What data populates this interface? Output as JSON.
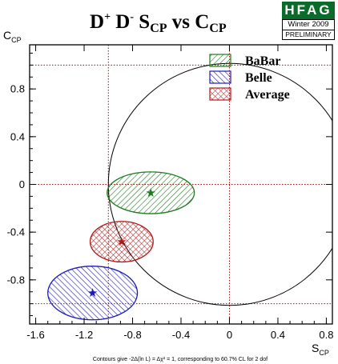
{
  "title": {
    "main": "D",
    "sup1": "+",
    "mid": " D",
    "sup2": "-",
    "sub_prefix": " S",
    "sub1": "CP",
    "vs": " vs C",
    "sub2": "CP"
  },
  "badge": {
    "logo": "HFAG",
    "season": "Winter 2009",
    "status": "PRELIMINARY"
  },
  "axes": {
    "x_label_main": "S",
    "x_label_sub": "CP",
    "y_label_main": "C",
    "y_label_sub": "CP"
  },
  "footnote": "Contours give -2Δ(ln L) = Δχ² = 1, corresponding to 60.7% CL for 2 dof",
  "chart_data": {
    "type": "scatter",
    "xlim": [
      -1.65,
      0.85
    ],
    "ylim": [
      -1.17,
      1.17
    ],
    "x_ticks": [
      {
        "value": -1.6,
        "label": "-1.6"
      },
      {
        "value": -1.2,
        "label": "-1.2"
      },
      {
        "value": -0.8,
        "label": "-0.8"
      },
      {
        "value": -0.4,
        "label": "-0.4"
      },
      {
        "value": 0,
        "label": "0"
      },
      {
        "value": 0.4,
        "label": "0.4"
      },
      {
        "value": 0.8,
        "label": "0.8"
      }
    ],
    "y_ticks": [
      {
        "value": -0.8,
        "label": "-0.8"
      },
      {
        "value": -0.4,
        "label": "-0.4"
      },
      {
        "value": 0,
        "label": "0"
      },
      {
        "value": 0.4,
        "label": "0.4"
      },
      {
        "value": 0.8,
        "label": "0.8"
      }
    ],
    "reference_lines": {
      "vertical": [
        -1.0,
        0.0
      ],
      "horizontal": [
        -1.0,
        0.0,
        1.0
      ],
      "color": "#a01010"
    },
    "physical_boundary": {
      "shape": "unit circle",
      "center": [
        0,
        0
      ],
      "radius": 1
    },
    "series": [
      {
        "name": "BaBar",
        "center": [
          -0.65,
          -0.07
        ],
        "radius_x": 0.36,
        "radius_y": 0.175,
        "color": "#1e7a1e",
        "hatch": "diagonal-right"
      },
      {
        "name": "Belle",
        "center": [
          -1.13,
          -0.91
        ],
        "radius_x": 0.37,
        "radius_y": 0.225,
        "color": "#1a1ab8",
        "hatch": "diagonal-left"
      },
      {
        "name": "Average",
        "center": [
          -0.89,
          -0.48
        ],
        "radius_x": 0.26,
        "radius_y": 0.17,
        "color": "#b01818",
        "hatch": "cross"
      }
    ],
    "legend_position": "top-right",
    "grid": false
  }
}
